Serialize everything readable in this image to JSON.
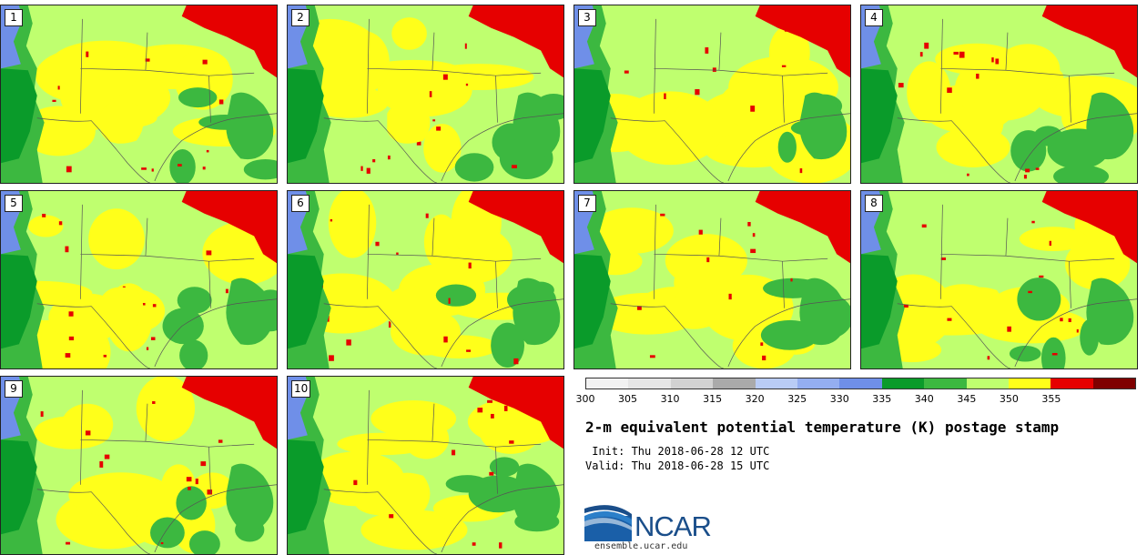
{
  "panels": [
    "1",
    "2",
    "3",
    "4",
    "5",
    "6",
    "7",
    "8",
    "9",
    "10"
  ],
  "colorbar": {
    "ticks": [
      "300",
      "305",
      "310",
      "315",
      "320",
      "325",
      "330",
      "335",
      "340",
      "345",
      "350",
      "355"
    ],
    "colors": [
      "#f2f2f2",
      "#e6e6e6",
      "#d2d2d2",
      "#aaaaaa",
      "#b9ccf5",
      "#94aef0",
      "#6f8fe8",
      "#0a9b2a",
      "#3cb840",
      "#bfff6f",
      "#ffff1a",
      "#e60000",
      "#7f0000"
    ]
  },
  "title": "2-m equivalent potential temperature (K) postage stamp",
  "init": " Init: Thu 2018-06-28 12 UTC",
  "valid": "Valid: Thu 2018-06-28 15 UTC",
  "logo": "NCAR",
  "url": "ensemble.ucar.edu"
}
